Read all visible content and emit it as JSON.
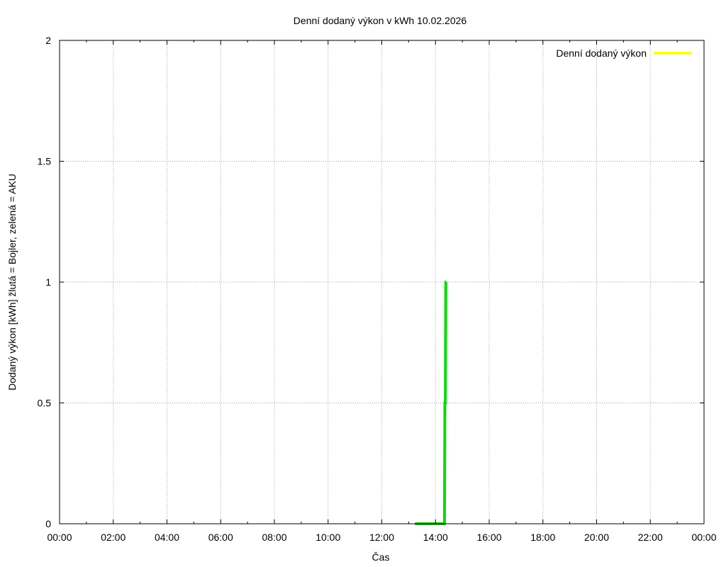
{
  "chart_data": {
    "type": "line",
    "title": "Denní dodaný výkon v kWh 10.02.2026",
    "xlabel": "Čas",
    "ylabel": "Dodaný výkon [kWh]  žlutá = Bojler, zelená = AKU",
    "x_unit": "time of day",
    "xlim": [
      "00:00",
      "24:00"
    ],
    "ylim": [
      0,
      2
    ],
    "x_ticks": [
      "00:00",
      "02:00",
      "04:00",
      "06:00",
      "08:00",
      "10:00",
      "12:00",
      "14:00",
      "16:00",
      "18:00",
      "20:00",
      "22:00",
      "00:00"
    ],
    "y_ticks": [
      "0",
      "0.5",
      "1",
      "1.5",
      "2"
    ],
    "grid": true,
    "legend_position": "top-right",
    "series": [
      {
        "name": "Denní dodaný výkon",
        "color": "#ffff00",
        "x": [],
        "y": []
      },
      {
        "color": "#00dd00",
        "x": [
          "13:14",
          "13:15",
          "13:30",
          "13:35",
          "13:40",
          "13:45",
          "13:50",
          "13:55",
          "14:00",
          "14:05",
          "14:10",
          "14:15",
          "14:20",
          "14:21",
          "14:22",
          "14:23",
          "14:24"
        ],
        "y": [
          0,
          0,
          0,
          0,
          0,
          0,
          0,
          0,
          0,
          0,
          0,
          0,
          0,
          0.5,
          0.5,
          1,
          1
        ]
      }
    ]
  }
}
